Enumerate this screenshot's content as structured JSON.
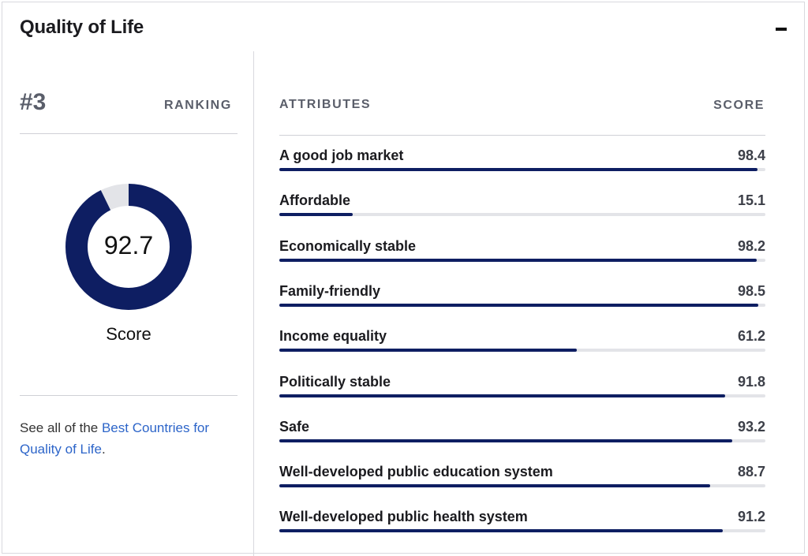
{
  "card": {
    "title": "Quality of Life",
    "collapse_icon": "minus-icon"
  },
  "ranking": {
    "value": "#3",
    "label": "RANKING"
  },
  "score": {
    "value": "92.7",
    "fraction": 0.927,
    "caption": "Score",
    "fill_color": "#0e1e62",
    "track_color": "#e3e4e8"
  },
  "see_all": {
    "prefix": "See all of the ",
    "link_text": "Best Countries for Quality of Life",
    "suffix": "."
  },
  "attributes_table": {
    "header_attr": "ATTRIBUTES",
    "header_score": "SCORE",
    "bar_color": "#0e1e62",
    "rows": [
      {
        "name": "A good job market",
        "score": "98.4",
        "fraction": 0.984
      },
      {
        "name": "Affordable",
        "score": "15.1",
        "fraction": 0.151
      },
      {
        "name": "Economically stable",
        "score": "98.2",
        "fraction": 0.982
      },
      {
        "name": "Family-friendly",
        "score": "98.5",
        "fraction": 0.985
      },
      {
        "name": "Income equality",
        "score": "61.2",
        "fraction": 0.612
      },
      {
        "name": "Politically stable",
        "score": "91.8",
        "fraction": 0.918
      },
      {
        "name": "Safe",
        "score": "93.2",
        "fraction": 0.932
      },
      {
        "name": "Well-developed public education system",
        "score": "88.7",
        "fraction": 0.887
      },
      {
        "name": "Well-developed public health system",
        "score": "91.2",
        "fraction": 0.912
      }
    ]
  }
}
